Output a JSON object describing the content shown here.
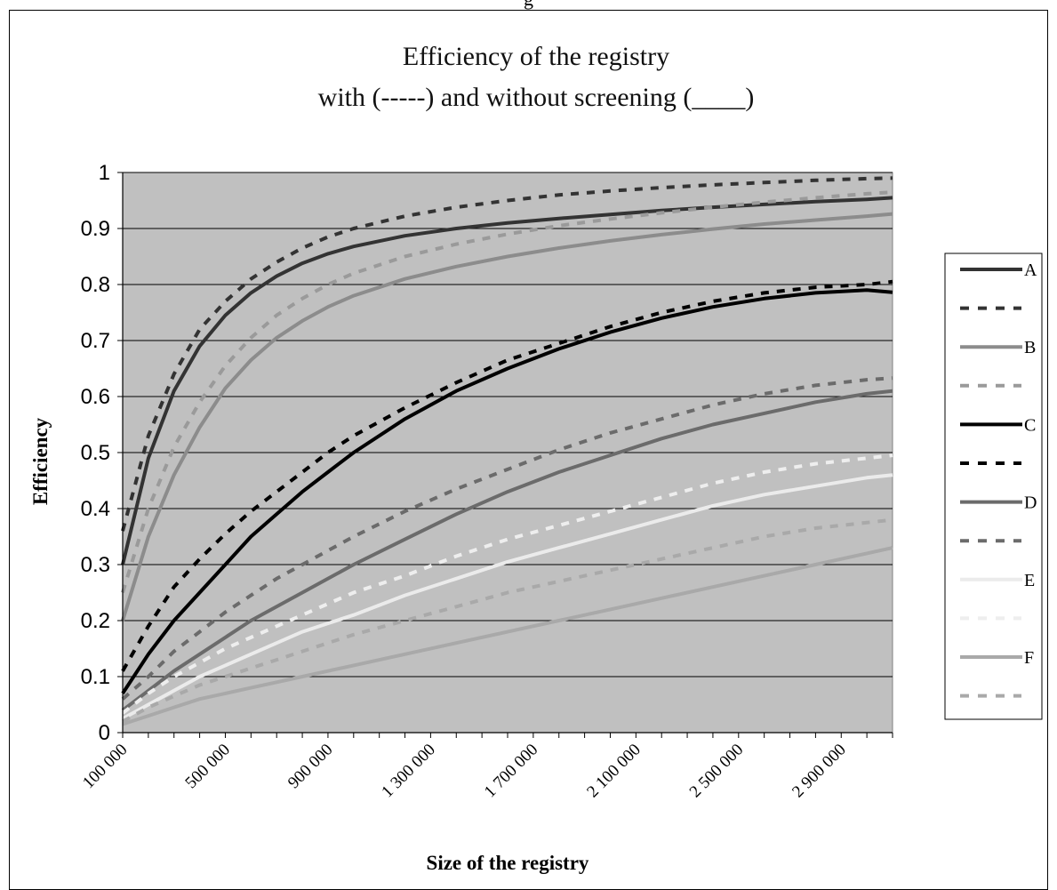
{
  "page": {
    "header_fragment": "g"
  },
  "chart_data": {
    "type": "line",
    "title": [
      "Efficiency of the registry",
      "with (-----) and without screening (____)"
    ],
    "xlabel": "Size of the registry",
    "ylabel": "Efficiency",
    "xlim": [
      100000,
      3100000
    ],
    "ylim": [
      0,
      1
    ],
    "x_ticks": [
      "100 000",
      "500 000",
      "900 000",
      "1 300 000",
      "1 700 000",
      "2 100 000",
      "2 500 000",
      "2 900 000"
    ],
    "y_ticks": [
      "0",
      "0.1",
      "0.2",
      "0.3",
      "0.4",
      "0.5",
      "0.6",
      "0.7",
      "0.8",
      "0.9",
      "1"
    ],
    "grid": true,
    "legend_position": "right",
    "x": [
      100000,
      200000,
      300000,
      400000,
      500000,
      600000,
      700000,
      800000,
      900000,
      1000000,
      1200000,
      1400000,
      1600000,
      1800000,
      2000000,
      2200000,
      2400000,
      2600000,
      2800000,
      3000000,
      3100000
    ],
    "series": [
      {
        "name": "A",
        "style": "solid",
        "color": "#333333",
        "values": [
          0.3,
          0.49,
          0.61,
          0.69,
          0.745,
          0.785,
          0.815,
          0.838,
          0.855,
          0.868,
          0.887,
          0.9,
          0.91,
          0.918,
          0.925,
          0.932,
          0.938,
          0.943,
          0.948,
          0.952,
          0.955
        ]
      },
      {
        "name": "",
        "style": "dashed",
        "color": "#333333",
        "values": [
          0.36,
          0.53,
          0.64,
          0.72,
          0.77,
          0.81,
          0.84,
          0.865,
          0.885,
          0.9,
          0.922,
          0.938,
          0.95,
          0.96,
          0.967,
          0.973,
          0.978,
          0.982,
          0.986,
          0.989,
          0.99
        ]
      },
      {
        "name": "B",
        "style": "solid",
        "color": "#8c8c8c",
        "values": [
          0.2,
          0.35,
          0.46,
          0.545,
          0.615,
          0.665,
          0.705,
          0.735,
          0.76,
          0.78,
          0.81,
          0.832,
          0.85,
          0.865,
          0.878,
          0.889,
          0.899,
          0.908,
          0.915,
          0.922,
          0.926
        ]
      },
      {
        "name": "",
        "style": "dashed",
        "color": "#9a9a9a",
        "values": [
          0.25,
          0.4,
          0.51,
          0.59,
          0.655,
          0.705,
          0.745,
          0.775,
          0.8,
          0.82,
          0.85,
          0.872,
          0.89,
          0.905,
          0.917,
          0.928,
          0.938,
          0.947,
          0.955,
          0.962,
          0.965
        ]
      },
      {
        "name": "C",
        "style": "solid",
        "color": "#000000",
        "values": [
          0.07,
          0.14,
          0.2,
          0.25,
          0.3,
          0.35,
          0.39,
          0.43,
          0.465,
          0.5,
          0.56,
          0.61,
          0.65,
          0.685,
          0.715,
          0.74,
          0.76,
          0.775,
          0.785,
          0.79,
          0.786
        ]
      },
      {
        "name": "",
        "style": "dashed",
        "color": "#000000",
        "values": [
          0.11,
          0.19,
          0.26,
          0.31,
          0.355,
          0.395,
          0.43,
          0.465,
          0.5,
          0.53,
          0.58,
          0.625,
          0.665,
          0.695,
          0.725,
          0.75,
          0.77,
          0.785,
          0.795,
          0.8,
          0.805
        ]
      },
      {
        "name": "D",
        "style": "solid",
        "color": "#6b6b6b",
        "values": [
          0.04,
          0.075,
          0.11,
          0.14,
          0.17,
          0.2,
          0.225,
          0.25,
          0.275,
          0.3,
          0.345,
          0.39,
          0.43,
          0.465,
          0.495,
          0.525,
          0.55,
          0.57,
          0.59,
          0.605,
          0.61
        ]
      },
      {
        "name": "",
        "style": "dashed",
        "color": "#6b6b6b",
        "values": [
          0.06,
          0.1,
          0.145,
          0.18,
          0.215,
          0.245,
          0.275,
          0.3,
          0.325,
          0.35,
          0.395,
          0.435,
          0.47,
          0.505,
          0.535,
          0.56,
          0.585,
          0.605,
          0.62,
          0.63,
          0.633
        ]
      },
      {
        "name": "E",
        "style": "solid",
        "color": "#ebebeb",
        "values": [
          0.025,
          0.05,
          0.075,
          0.1,
          0.12,
          0.14,
          0.16,
          0.18,
          0.195,
          0.21,
          0.245,
          0.275,
          0.305,
          0.33,
          0.355,
          0.38,
          0.405,
          0.425,
          0.44,
          0.455,
          0.46
        ]
      },
      {
        "name": "",
        "style": "dashed",
        "color": "#eeeeee",
        "values": [
          0.035,
          0.07,
          0.1,
          0.125,
          0.15,
          0.17,
          0.19,
          0.21,
          0.23,
          0.25,
          0.28,
          0.315,
          0.345,
          0.37,
          0.395,
          0.42,
          0.445,
          0.465,
          0.48,
          0.49,
          0.495
        ]
      },
      {
        "name": "F",
        "style": "solid",
        "color": "#a9a9a9",
        "values": [
          0.015,
          0.03,
          0.045,
          0.06,
          0.07,
          0.08,
          0.09,
          0.1,
          0.11,
          0.12,
          0.14,
          0.16,
          0.18,
          0.2,
          0.22,
          0.24,
          0.26,
          0.28,
          0.3,
          0.32,
          0.33
        ]
      },
      {
        "name": "",
        "style": "dashed",
        "color": "#a9a9a9",
        "values": [
          0.02,
          0.045,
          0.065,
          0.085,
          0.1,
          0.115,
          0.13,
          0.145,
          0.16,
          0.175,
          0.2,
          0.225,
          0.25,
          0.27,
          0.29,
          0.31,
          0.33,
          0.35,
          0.365,
          0.375,
          0.38
        ]
      }
    ]
  }
}
